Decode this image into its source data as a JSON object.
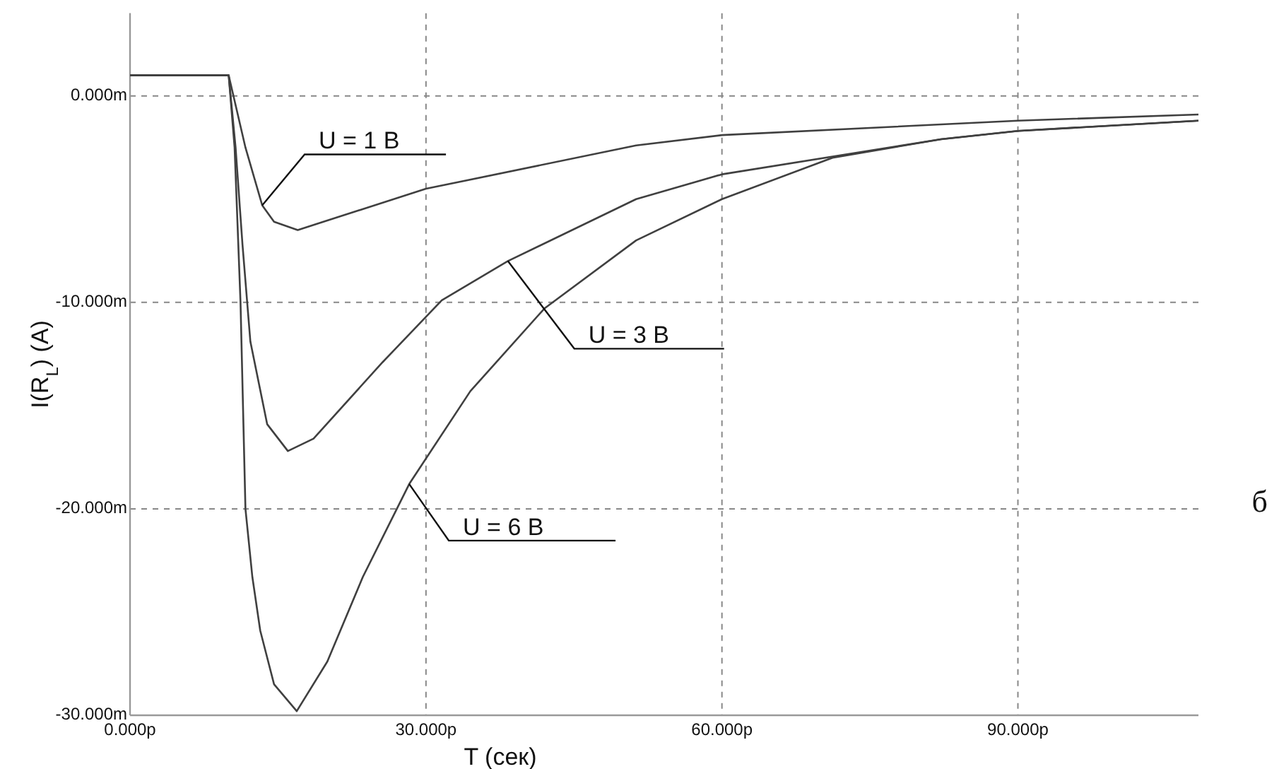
{
  "chart_data": {
    "type": "line",
    "xlabel": "T (сек)",
    "ylabel": "I(R$_{L}$) (A)",
    "xlim": [
      0,
      108.3
    ],
    "ylim": [
      -30,
      4
    ],
    "xticks": [
      {
        "value": 0,
        "label": "0.000p"
      },
      {
        "value": 30,
        "label": "30.000p"
      },
      {
        "value": 60,
        "label": "60.000p"
      },
      {
        "value": 90,
        "label": "90.000p"
      }
    ],
    "yticks": [
      {
        "value": -30,
        "label": "-30.000m"
      },
      {
        "value": -20,
        "label": "-20.000m"
      },
      {
        "value": -10,
        "label": "-10.000m"
      },
      {
        "value": 0,
        "label": "0.000m"
      }
    ],
    "grid": true,
    "line_style": "solid",
    "marker": "none",
    "series": [
      {
        "color": "#404040",
        "x": [
          0,
          10,
          11.7,
          13.4,
          14.6,
          17.0,
          19.6,
          30,
          51.3,
          60,
          90,
          108.3
        ],
        "values": [
          1.0,
          1.0,
          -2.5,
          -5.3,
          -6.1,
          -6.5,
          -6.1,
          -4.5,
          -2.4,
          -1.9,
          -1.2,
          -0.9
        ]
      },
      {
        "color": "#404040",
        "x": [
          0,
          10,
          10.7,
          11.4,
          12.2,
          13.9,
          16.0,
          18.6,
          25.6,
          31.6,
          38.3,
          51.3,
          60,
          82.2,
          90,
          108.3
        ],
        "values": [
          1.0,
          1.0,
          -2.5,
          -7.2,
          -11.9,
          -15.9,
          -17.2,
          -16.6,
          -12.9,
          -9.9,
          -8.0,
          -5.0,
          -3.8,
          -2.1,
          -1.7,
          -1.2
        ]
      },
      {
        "color": "#404040",
        "x": [
          0,
          10,
          10.6,
          11.2,
          11.7,
          12.4,
          13.2,
          14.6,
          16.9,
          20.0,
          23.6,
          28.3,
          34.5,
          42.0,
          51.3,
          60,
          71.2,
          82.2,
          90,
          108.3
        ],
        "values": [
          1.0,
          1.0,
          -2.5,
          -10.0,
          -20.0,
          -23.3,
          -25.9,
          -28.5,
          -29.8,
          -27.4,
          -23.3,
          -18.8,
          -14.3,
          -10.3,
          -7.0,
          -5.0,
          -3.0,
          -2.1,
          -1.7,
          -1.2
        ]
      }
    ],
    "annotations": [
      {
        "text": "U = 1 В",
        "x": 13.4,
        "y": -5.3
      },
      {
        "text": "U = 3 В",
        "x": 38.3,
        "y": -8.0
      },
      {
        "text": "U = 6 В",
        "x": 28.3,
        "y": -18.8
      },
      "б"
    ]
  }
}
